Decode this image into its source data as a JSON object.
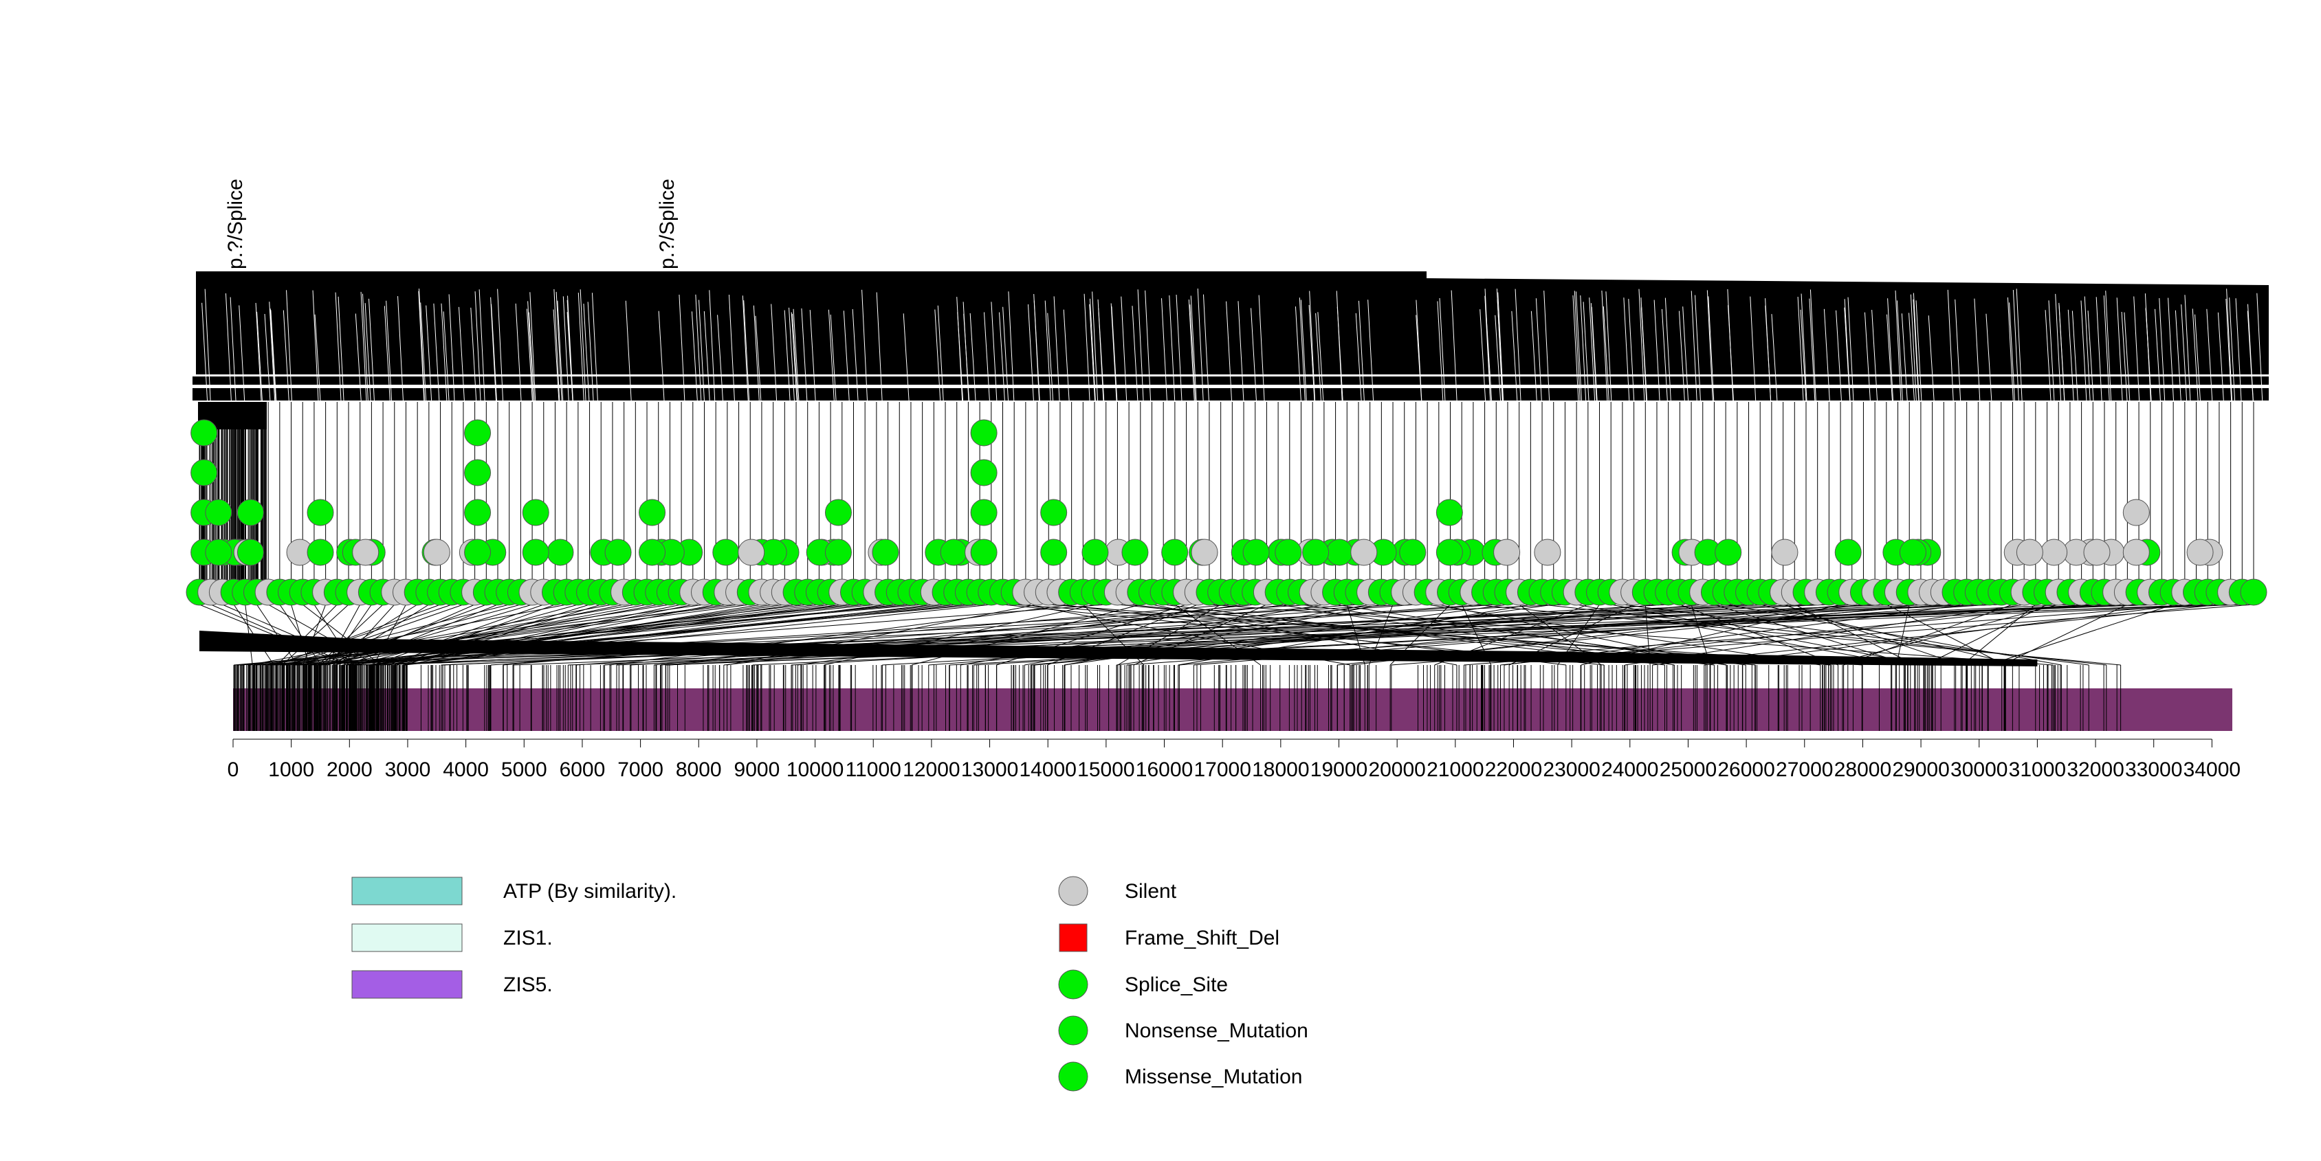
{
  "chart_data": {
    "type": "lollipop",
    "title": "",
    "xlabel": "",
    "ylabel": "",
    "xlim": [
      0,
      34350
    ],
    "ticks": [
      0,
      1000,
      2000,
      3000,
      4000,
      5000,
      6000,
      7000,
      8000,
      9000,
      10000,
      11000,
      12000,
      13000,
      14000,
      15000,
      16000,
      17000,
      18000,
      19000,
      20000,
      21000,
      22000,
      23000,
      24000,
      25000,
      26000,
      27000,
      28000,
      29000,
      30000,
      31000,
      32000,
      33000,
      34000
    ],
    "tick_labels": [
      "0",
      "1000",
      "2000",
      "3000",
      "4000",
      "5000",
      "6000",
      "7000",
      "8000",
      "9000",
      "10000",
      "11000",
      "12000",
      "13000",
      "14000",
      "15000",
      "16000",
      "17000",
      "18000",
      "19000",
      "20000",
      "21000",
      "22000",
      "23000",
      "24000",
      "25000",
      "26000",
      "27000",
      "28000",
      "29000",
      "30000",
      "31000",
      "32000",
      "33000",
      "34000"
    ],
    "protein_length": 34350,
    "domain_track_color": "#7b3570",
    "mutation_types": {
      "Silent": "#cccccc",
      "Frame_Shift_Del": "#ff0000",
      "Splice_Site": "#00ee00",
      "Nonsense_Mutation": "#00ee00",
      "Missense_Mutation": "#00ee00"
    },
    "stacked_mutations": [
      {
        "pos": -500,
        "count": 4,
        "type": "Missense_Mutation"
      },
      {
        "pos": -250,
        "count": 2,
        "type": "Missense_Mutation"
      },
      {
        "pos": 300,
        "count": 2,
        "type": "Missense_Mutation"
      },
      {
        "pos": 1500,
        "count": 2,
        "type": "Missense_Mutation"
      },
      {
        "pos": 4200,
        "count": 4,
        "type": "Missense_Mutation"
      },
      {
        "pos": 5200,
        "count": 2,
        "type": "Missense_Mutation"
      },
      {
        "pos": 7200,
        "count": 2,
        "type": "Missense_Mutation"
      },
      {
        "pos": 10400,
        "count": 2,
        "type": "Missense_Mutation"
      },
      {
        "pos": 12900,
        "count": 4,
        "type": "Missense_Mutation"
      },
      {
        "pos": 14100,
        "count": 2,
        "type": "Missense_Mutation"
      },
      {
        "pos": 20900,
        "count": 2,
        "type": "Missense_Mutation"
      },
      {
        "pos": 32700,
        "count": 2,
        "type": "Silent"
      }
    ],
    "rotated_labels": [
      "p.?/Splice",
      "p.?/Splice"
    ],
    "legend_domains": [
      {
        "label": "ATP (By similarity).",
        "color": "#7dd8d0"
      },
      {
        "label": "ZIS1.",
        "color": "#e0faf2"
      },
      {
        "label": "ZIS5.",
        "color": "#a45ee5"
      }
    ],
    "legend_mutations": [
      {
        "label": "Silent",
        "color": "#cccccc",
        "shape": "circle"
      },
      {
        "label": "Frame_Shift_Del",
        "color": "#ff0000",
        "shape": "square"
      },
      {
        "label": "Splice_Site",
        "color": "#00ee00",
        "shape": "circle"
      },
      {
        "label": "Nonsense_Mutation",
        "color": "#00ee00",
        "shape": "circle"
      },
      {
        "label": "Missense_Mutation",
        "color": "#00ee00",
        "shape": "circle"
      }
    ]
  }
}
